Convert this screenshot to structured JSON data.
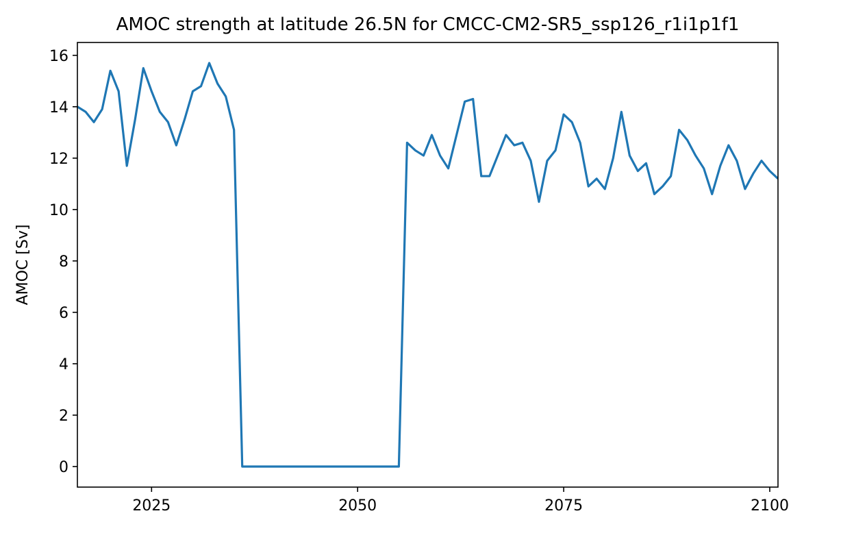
{
  "chart_data": {
    "type": "line",
    "title": "AMOC strength at latitude 26.5N for CMCC-CM2-SR5_ssp126_r1i1p1f1",
    "xlabel": "",
    "ylabel": "AMOC [Sv]",
    "xlim": [
      2016,
      2101
    ],
    "ylim": [
      -0.8,
      16.5
    ],
    "x_ticks": [
      2025,
      2050,
      2075,
      2100
    ],
    "y_ticks": [
      0,
      2,
      4,
      6,
      8,
      10,
      12,
      14,
      16
    ],
    "grid": false,
    "series": [
      {
        "color": "#1f77b4",
        "x": [
          2015,
          2016,
          2017,
          2018,
          2019,
          2020,
          2021,
          2022,
          2023,
          2024,
          2025,
          2026,
          2027,
          2028,
          2029,
          2030,
          2031,
          2032,
          2033,
          2034,
          2035,
          2036,
          2037,
          2038,
          2039,
          2040,
          2041,
          2042,
          2043,
          2044,
          2045,
          2046,
          2047,
          2048,
          2049,
          2050,
          2051,
          2052,
          2053,
          2054,
          2055,
          2056,
          2057,
          2058,
          2059,
          2060,
          2061,
          2062,
          2063,
          2064,
          2065,
          2066,
          2067,
          2068,
          2069,
          2070,
          2071,
          2072,
          2073,
          2074,
          2075,
          2076,
          2077,
          2078,
          2079,
          2080,
          2081,
          2082,
          2083,
          2084,
          2085,
          2086,
          2087,
          2088,
          2089,
          2090,
          2091,
          2092,
          2093,
          2094,
          2095,
          2096,
          2097,
          2098,
          2099,
          2100,
          2101
        ],
        "values": [
          14.2,
          14.0,
          13.8,
          13.4,
          13.9,
          15.4,
          14.6,
          11.7,
          13.5,
          15.5,
          14.6,
          13.8,
          13.4,
          12.5,
          13.5,
          14.6,
          14.8,
          15.7,
          14.9,
          14.4,
          13.1,
          0,
          0,
          0,
          0,
          0,
          0,
          0,
          0,
          0,
          0,
          0,
          0,
          0,
          0,
          0,
          0,
          0,
          0,
          0,
          0,
          12.6,
          12.3,
          12.1,
          12.9,
          12.1,
          11.6,
          12.9,
          14.2,
          14.3,
          11.3,
          11.3,
          12.1,
          12.9,
          12.5,
          12.6,
          11.9,
          10.3,
          11.9,
          12.3,
          13.7,
          13.4,
          12.6,
          10.9,
          11.2,
          10.8,
          12.0,
          13.8,
          12.1,
          11.5,
          11.8,
          10.6,
          10.9,
          11.3,
          13.1,
          12.7,
          12.1,
          11.6,
          10.6,
          11.7,
          12.5,
          11.9,
          10.8,
          11.4,
          11.9,
          11.5,
          11.2
        ]
      }
    ]
  }
}
